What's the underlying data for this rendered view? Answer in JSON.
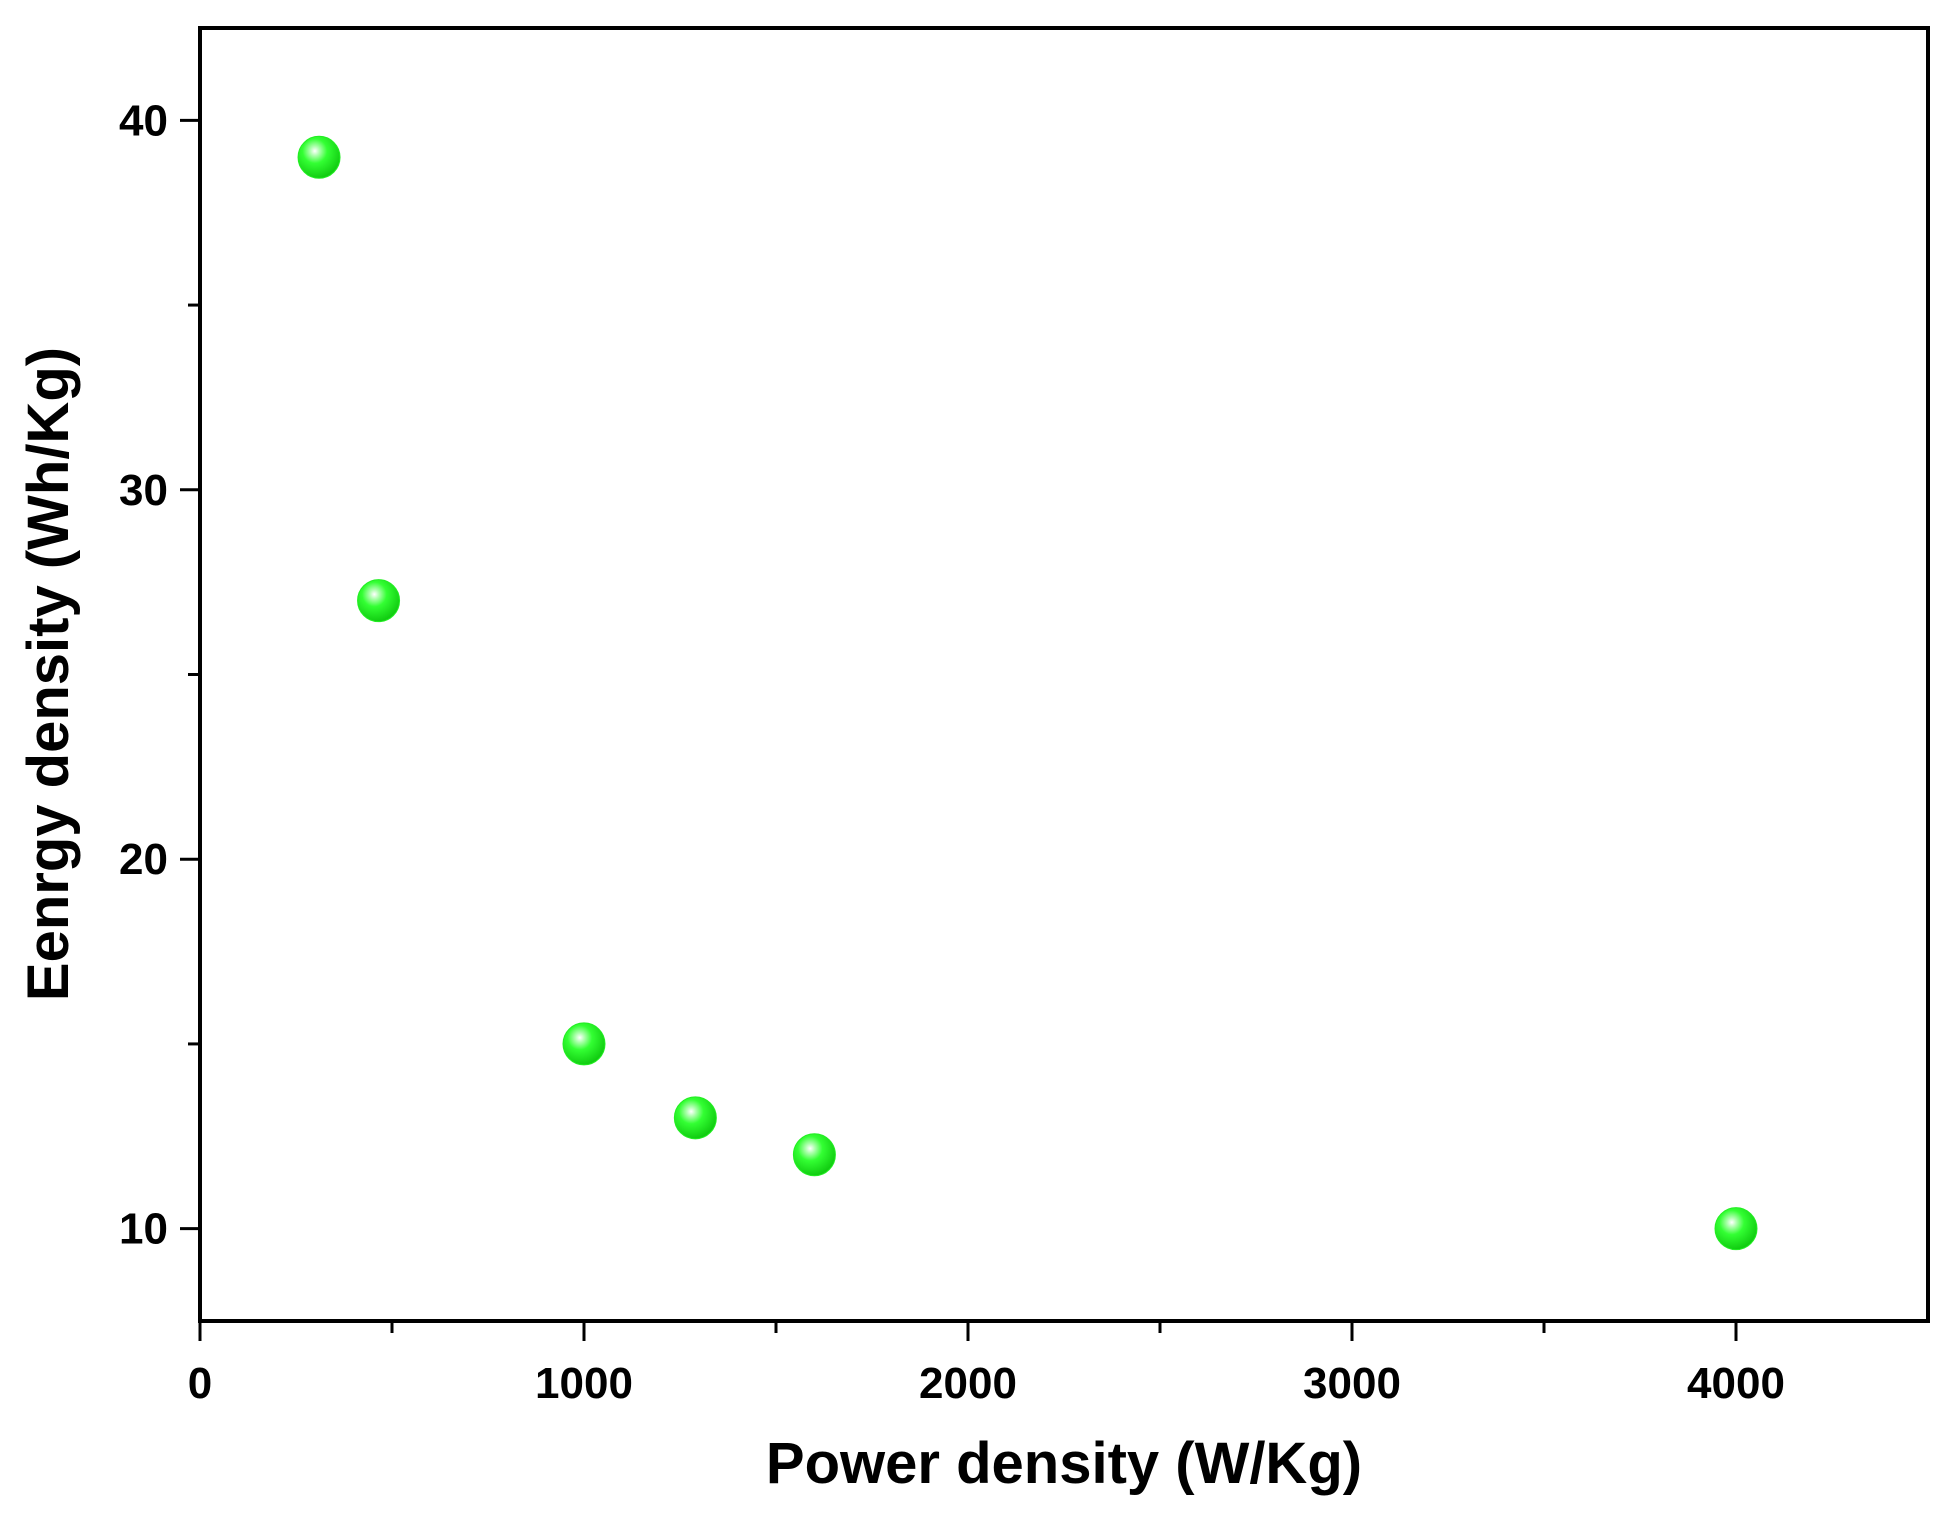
{
  "chart_data": {
    "type": "scatter",
    "title": "",
    "xlabel": "Power density (W/Kg)",
    "ylabel": "Eenrgy density (Wh/Kg)",
    "xlim": [
      0,
      4500
    ],
    "ylim": [
      7.5,
      42.5
    ],
    "x_ticks": [
      0,
      1000,
      2000,
      3000,
      4000
    ],
    "x_minor_ticks": [
      500,
      1500,
      2500,
      3500
    ],
    "y_ticks": [
      10,
      20,
      30,
      40
    ],
    "y_minor_ticks": [
      15,
      25,
      35
    ],
    "grid": false,
    "series": [
      {
        "color": "#22ee22",
        "marker": "sphere",
        "points": [
          {
            "x": 310,
            "y": 39
          },
          {
            "x": 465,
            "y": 27
          },
          {
            "x": 1000,
            "y": 15
          },
          {
            "x": 1290,
            "y": 13
          },
          {
            "x": 1600,
            "y": 12
          },
          {
            "x": 4000,
            "y": 10
          }
        ]
      }
    ]
  }
}
